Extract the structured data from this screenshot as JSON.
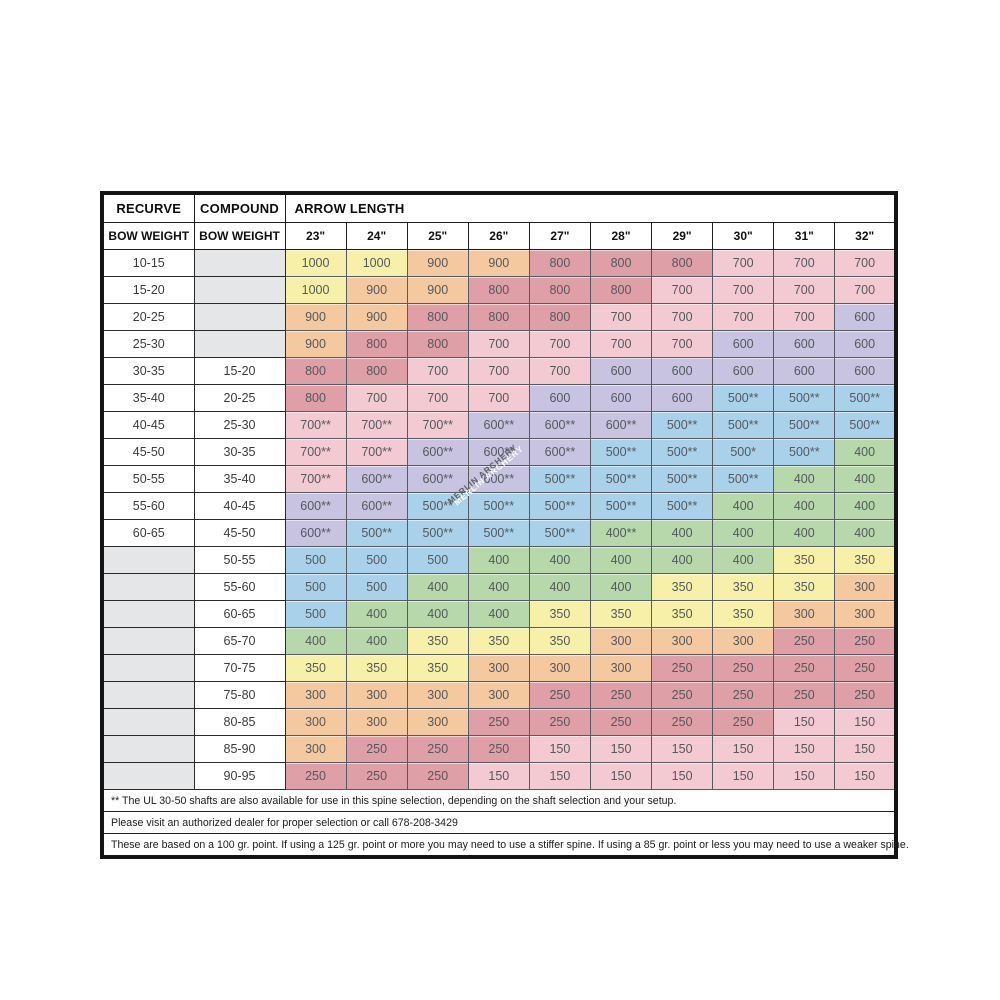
{
  "chart_data": {
    "type": "table",
    "header": {
      "recurve": "RECURVE",
      "compound": "COMPOUND",
      "arrow_length": "ARROW LENGTH",
      "bow_weight": "BOW WEIGHT",
      "lengths": [
        "23\"",
        "24\"",
        "25\"",
        "26\"",
        "27\"",
        "28\"",
        "29\"",
        "30\"",
        "31\"",
        "32\""
      ]
    },
    "rows": [
      {
        "recurve": "10-15",
        "compound": "",
        "values": [
          "1000",
          "1000",
          "900",
          "900",
          "800",
          "800",
          "800",
          "700",
          "700",
          "700"
        ]
      },
      {
        "recurve": "15-20",
        "compound": "",
        "values": [
          "1000",
          "900",
          "900",
          "800",
          "800",
          "800",
          "700",
          "700",
          "700",
          "700"
        ]
      },
      {
        "recurve": "20-25",
        "compound": "",
        "values": [
          "900",
          "900",
          "800",
          "800",
          "800",
          "700",
          "700",
          "700",
          "700",
          "600"
        ]
      },
      {
        "recurve": "25-30",
        "compound": "",
        "values": [
          "900",
          "800",
          "800",
          "700",
          "700",
          "700",
          "700",
          "600",
          "600",
          "600"
        ]
      },
      {
        "recurve": "30-35",
        "compound": "15-20",
        "values": [
          "800",
          "800",
          "700",
          "700",
          "700",
          "600",
          "600",
          "600",
          "600",
          "600"
        ]
      },
      {
        "recurve": "35-40",
        "compound": "20-25",
        "values": [
          "800",
          "700",
          "700",
          "700",
          "600",
          "600",
          "600",
          "500**",
          "500**",
          "500**"
        ]
      },
      {
        "recurve": "40-45",
        "compound": "25-30",
        "values": [
          "700**",
          "700**",
          "700**",
          "600**",
          "600**",
          "600**",
          "500**",
          "500**",
          "500**",
          "500**"
        ]
      },
      {
        "recurve": "45-50",
        "compound": "30-35",
        "values": [
          "700**",
          "700**",
          "600**",
          "600**",
          "600**",
          "500**",
          "500**",
          "500*",
          "500**",
          "400"
        ]
      },
      {
        "recurve": "50-55",
        "compound": "35-40",
        "values": [
          "700**",
          "600**",
          "600**",
          "600**",
          "500**",
          "500**",
          "500**",
          "500**",
          "400",
          "400"
        ]
      },
      {
        "recurve": "55-60",
        "compound": "40-45",
        "values": [
          "600**",
          "600**",
          "500**",
          "500**",
          "500**",
          "500**",
          "500**",
          "400",
          "400",
          "400"
        ]
      },
      {
        "recurve": "60-65",
        "compound": "45-50",
        "values": [
          "600**",
          "500**",
          "500**",
          "500**",
          "500**",
          "400**",
          "400",
          "400",
          "400",
          "400"
        ]
      },
      {
        "recurve": "",
        "compound": "50-55",
        "values": [
          "500",
          "500",
          "500",
          "400",
          "400",
          "400",
          "400",
          "400",
          "350",
          "350"
        ]
      },
      {
        "recurve": "",
        "compound": "55-60",
        "values": [
          "500",
          "500",
          "400",
          "400",
          "400",
          "400",
          "350",
          "350",
          "350",
          "300"
        ]
      },
      {
        "recurve": "",
        "compound": "60-65",
        "values": [
          "500",
          "400",
          "400",
          "400",
          "350",
          "350",
          "350",
          "350",
          "300",
          "300"
        ]
      },
      {
        "recurve": "",
        "compound": "65-70",
        "values": [
          "400",
          "400",
          "350",
          "350",
          "350",
          "300",
          "300",
          "300",
          "250",
          "250"
        ]
      },
      {
        "recurve": "",
        "compound": "70-75",
        "values": [
          "350",
          "350",
          "350",
          "300",
          "300",
          "300",
          "250",
          "250",
          "250",
          "250"
        ]
      },
      {
        "recurve": "",
        "compound": "75-80",
        "values": [
          "300",
          "300",
          "300",
          "300",
          "250",
          "250",
          "250",
          "250",
          "250",
          "250"
        ]
      },
      {
        "recurve": "",
        "compound": "80-85",
        "values": [
          "300",
          "300",
          "300",
          "250",
          "250",
          "250",
          "250",
          "250",
          "150",
          "150"
        ]
      },
      {
        "recurve": "",
        "compound": "85-90",
        "values": [
          "300",
          "250",
          "250",
          "250",
          "150",
          "150",
          "150",
          "150",
          "150",
          "150"
        ]
      },
      {
        "recurve": "",
        "compound": "90-95",
        "values": [
          "250",
          "250",
          "250",
          "150",
          "150",
          "150",
          "150",
          "150",
          "150",
          "150"
        ]
      }
    ],
    "value_colors": {
      "1000": "#f6f0a8",
      "900": "#f5c9a0",
      "800": "#df9fa6",
      "700": "#f3cad2",
      "600": "#c7c3e1",
      "500": "#a9d2ea",
      "400": "#b7d8aa",
      "350": "#f6f0a8",
      "300": "#f5c9a0",
      "250": "#df9fa6",
      "150": "#f3cad2"
    },
    "empty_cell_color": "#e5e6e8",
    "footnotes": [
      "** The UL 30-50 shafts are also available for use in this spine selection, depending on the shaft selection and your setup.",
      "Please visit an authorized dealer for proper selection or call 678-208-3429",
      "These are based on a 100 gr. point. If using a 125 gr. point or more you may need to use a stiffer spine. If using a 85 gr. point or less you may need to use a weaker spine."
    ],
    "watermark": "MERLIN ARCHERY"
  }
}
